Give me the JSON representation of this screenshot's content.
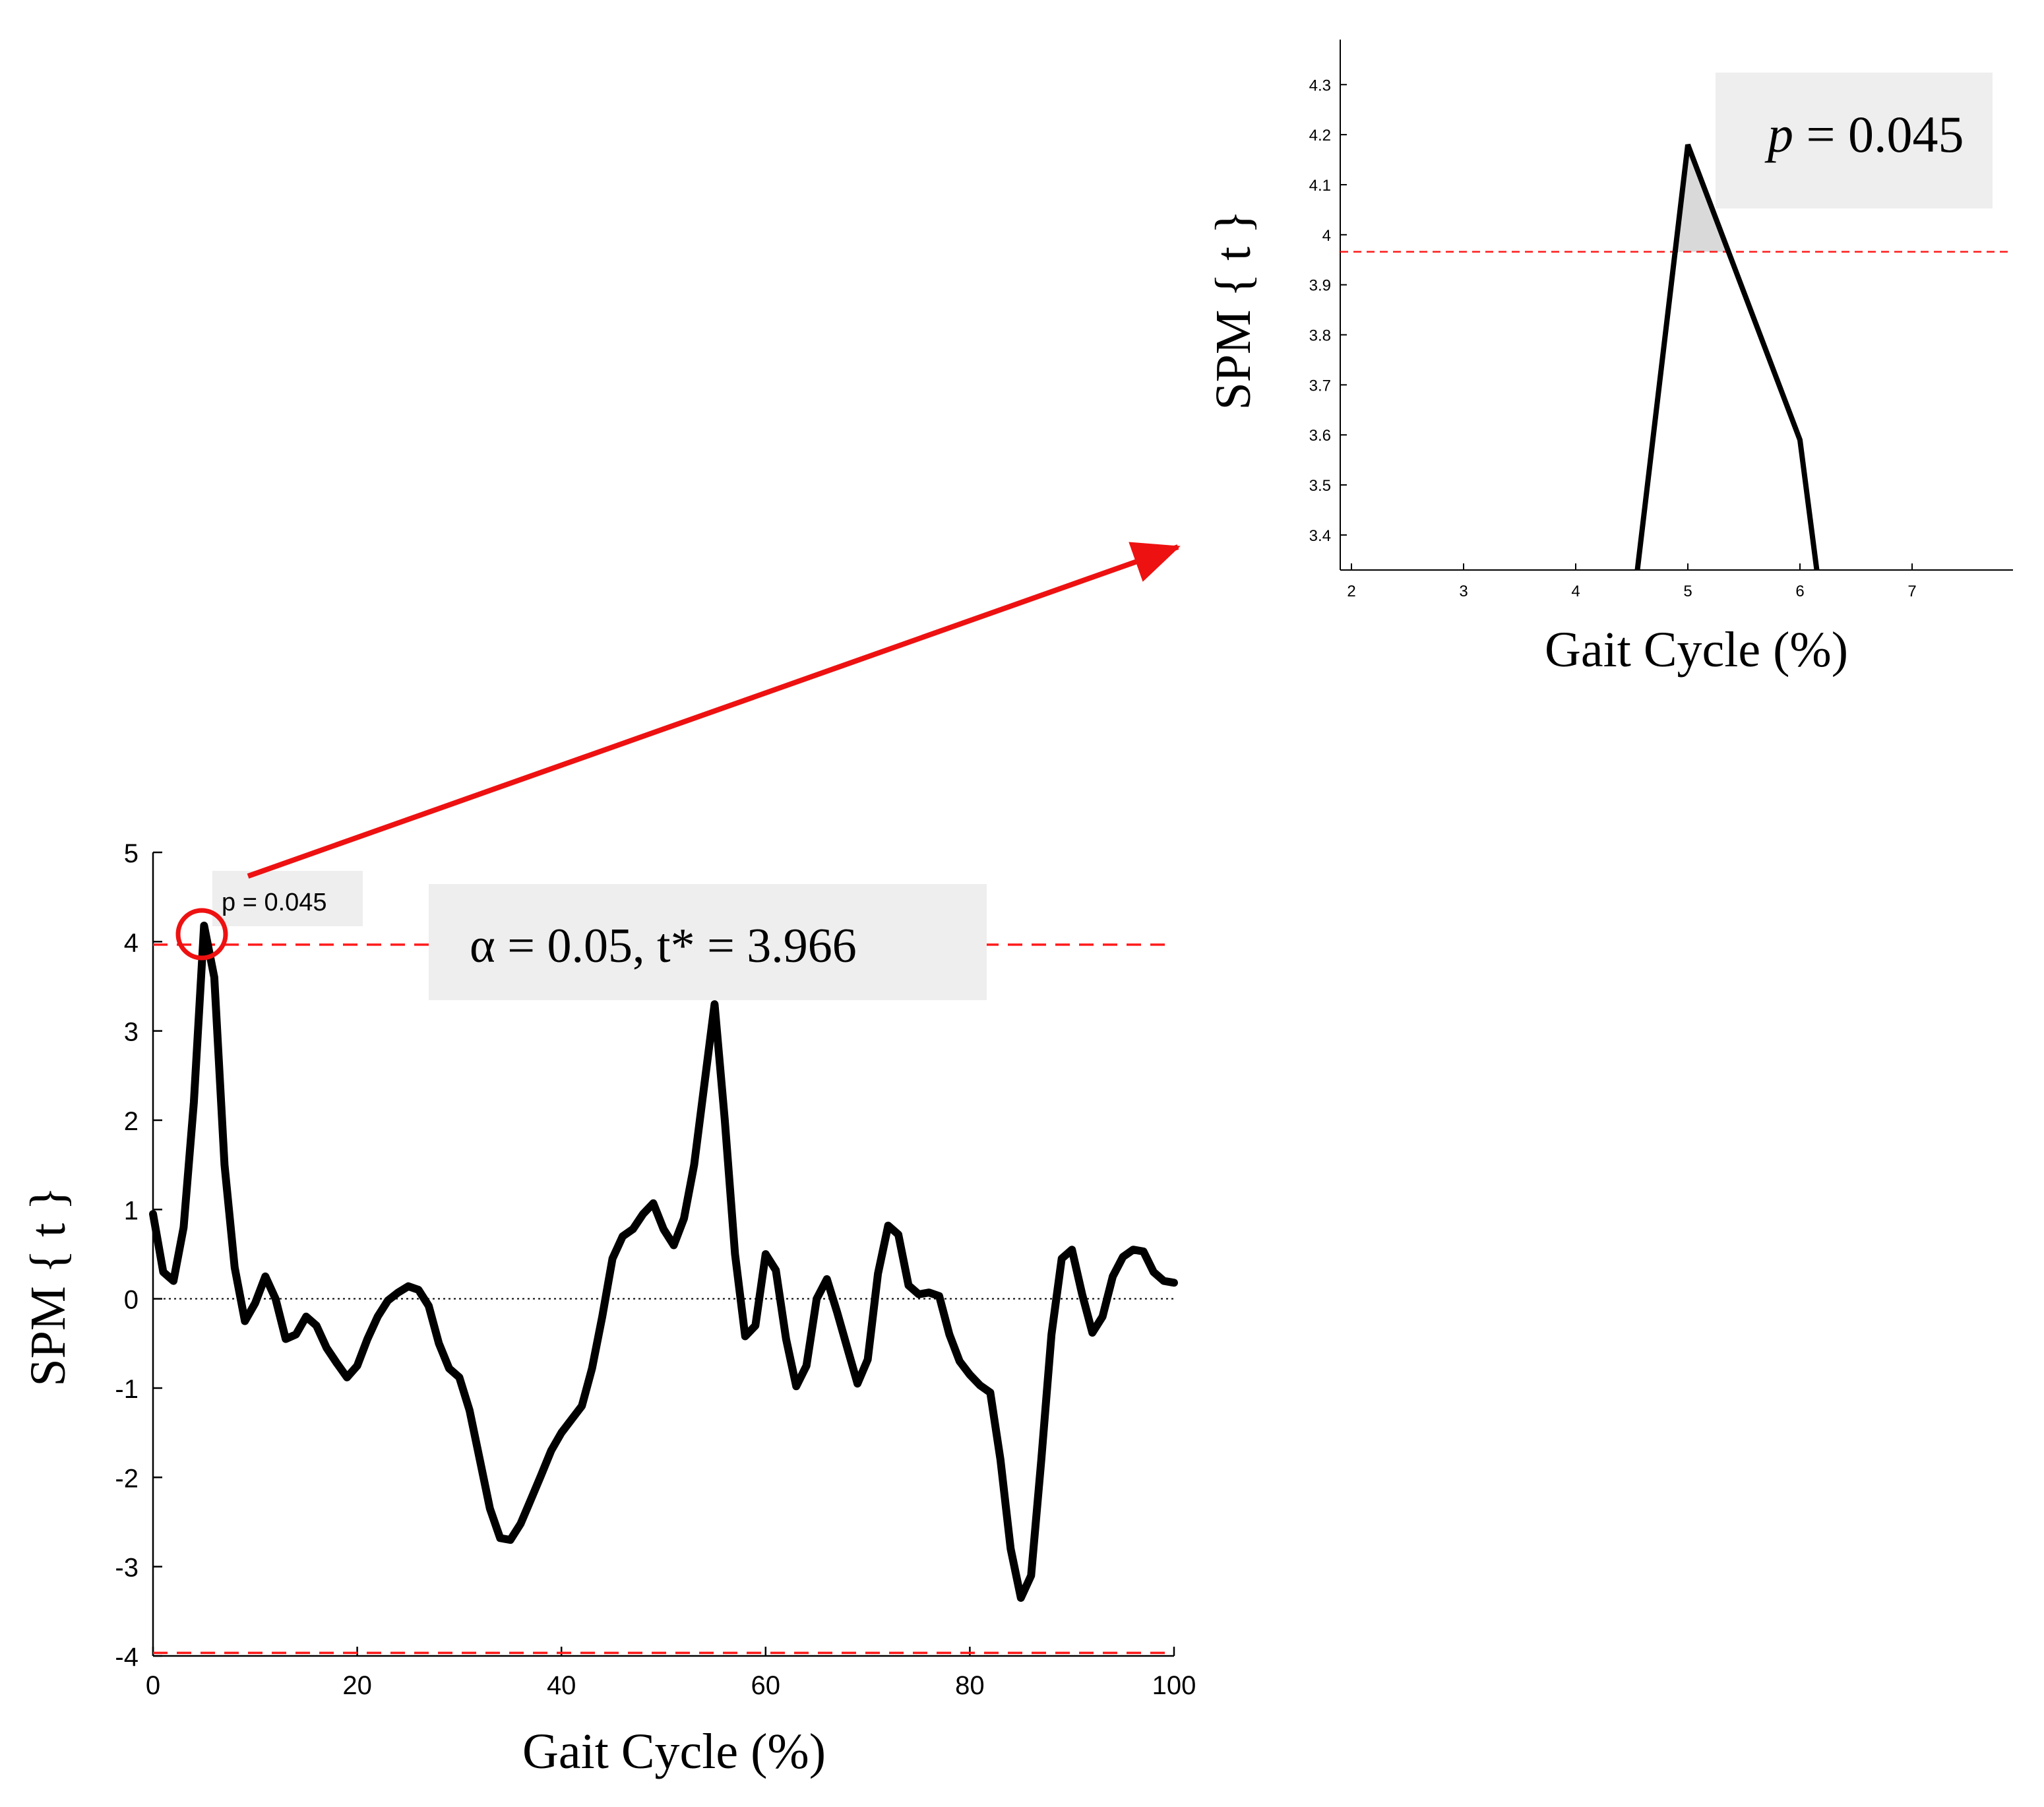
{
  "chart_data": [
    {
      "type": "line",
      "xlabel": "Gait Cycle (%)",
      "ylabel": "SPM { t }",
      "xlim": [
        0,
        100
      ],
      "ylim": [
        -4,
        5
      ],
      "xticks": [
        "0",
        "20",
        "40",
        "60",
        "80",
        "100"
      ],
      "yticks": [
        "-4",
        "-3",
        "-2",
        "-1",
        "0",
        "1",
        "2",
        "3",
        "4",
        "5"
      ],
      "threshold": 3.966,
      "annotations": {
        "alpha_label": "α = 0.05, t* = 3.966",
        "p_label": "p = 0.045"
      },
      "series": [
        {
          "x": [
            0,
            1,
            2,
            3,
            4,
            5,
            6,
            7,
            8,
            9,
            10,
            11,
            12,
            13,
            14,
            15,
            16,
            17,
            18,
            19,
            20,
            21,
            22,
            23,
            24,
            25,
            26,
            27,
            28,
            29,
            30,
            31,
            32,
            33,
            34,
            35,
            36,
            37,
            38,
            39,
            40,
            41,
            42,
            43,
            44,
            45,
            46,
            47,
            48,
            49,
            50,
            51,
            52,
            53,
            54,
            55,
            56,
            57,
            58,
            59,
            60,
            61,
            62,
            63,
            64,
            65,
            66,
            67,
            68,
            69,
            70,
            71,
            72,
            73,
            74,
            75,
            76,
            77,
            78,
            79,
            80,
            81,
            82,
            83,
            84,
            85,
            86,
            87,
            88,
            89,
            90,
            91,
            92,
            93,
            94,
            95,
            96,
            97,
            98,
            99,
            100
          ],
          "values": [
            0.95,
            0.3,
            0.2,
            0.8,
            2.2,
            4.18,
            3.6,
            1.5,
            0.35,
            -0.25,
            -0.05,
            0.25,
            0.0,
            -0.45,
            -0.4,
            -0.2,
            -0.3,
            -0.55,
            -0.72,
            -0.88,
            -0.75,
            -0.45,
            -0.2,
            -0.02,
            0.07,
            0.14,
            0.1,
            -0.08,
            -0.5,
            -0.78,
            -0.88,
            -1.25,
            -1.8,
            -2.35,
            -2.68,
            -2.7,
            -2.52,
            -2.25,
            -1.98,
            -1.7,
            -1.5,
            -1.35,
            -1.2,
            -0.78,
            -0.2,
            0.45,
            0.7,
            0.78,
            0.95,
            1.07,
            0.78,
            0.6,
            0.9,
            1.5,
            2.4,
            3.3,
            2.0,
            0.5,
            -0.42,
            -0.3,
            0.5,
            0.32,
            -0.45,
            -0.98,
            -0.75,
            0.0,
            0.22,
            -0.15,
            -0.55,
            -0.95,
            -0.68,
            0.28,
            0.82,
            0.72,
            0.15,
            0.05,
            0.07,
            0.03,
            -0.4,
            -0.7,
            -0.85,
            -0.97,
            -1.05,
            -1.8,
            -2.8,
            -3.35,
            -3.1,
            -1.8,
            -0.4,
            0.45,
            0.55,
            0.05,
            -0.38,
            -0.2,
            0.25,
            0.47,
            0.55,
            0.53,
            0.3,
            0.2,
            0.18
          ]
        }
      ]
    },
    {
      "type": "line",
      "xlabel": "Gait Cycle (%)",
      "ylabel": "SPM { t }",
      "xlim": [
        1.9,
        7.9
      ],
      "ylim": [
        3.33,
        4.39
      ],
      "xticks": [
        "2",
        "3",
        "4",
        "5",
        "6",
        "7"
      ],
      "yticks": [
        "3.4",
        "3.5",
        "3.6",
        "3.7",
        "3.8",
        "3.9",
        "4",
        "4.1",
        "4.2",
        "4.3"
      ],
      "threshold": 3.966,
      "annotations": {
        "p_label": "p = 0.045",
        "p_symbol": "p",
        "p_value": " = 0.045"
      },
      "series": [
        {
          "x": [
            4.55,
            5.0,
            6.0,
            6.15
          ],
          "values": [
            3.33,
            4.18,
            3.59,
            3.33
          ]
        }
      ]
    }
  ],
  "colors": {
    "line": "#000000",
    "threshold": "#ff1a1a",
    "arrow": "#ee1111",
    "box": "#eeeeee",
    "shade": "#d9d9d9"
  }
}
